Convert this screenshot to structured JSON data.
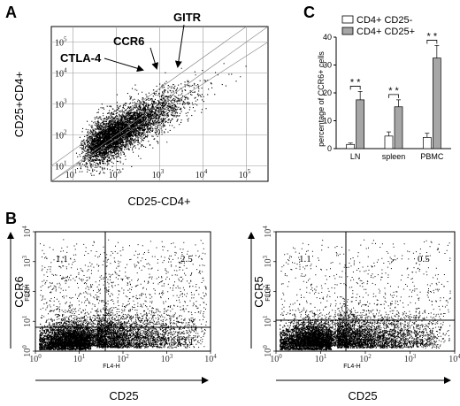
{
  "panel_labels": {
    "a": "A",
    "b": "B",
    "c": "C"
  },
  "colors": {
    "white_bar": "#ffffff",
    "gray_bar": "#a6a6a6",
    "dots": "#000000"
  },
  "chart_data": [
    {
      "type": "scatter",
      "panel": "A",
      "xlabel": "CD25-CD4+",
      "ylabel": "CD25+CD4+",
      "x_ticks": [
        "10",
        "10",
        "10",
        "10",
        "10"
      ],
      "x_tick_exps": [
        "1",
        "2",
        "3",
        "4",
        "5"
      ],
      "y_ticks": [
        "10",
        "10",
        "10",
        "10",
        "10"
      ],
      "y_tick_exps": [
        "1",
        "2",
        "3",
        "4",
        "5"
      ],
      "xlim": [
        0.5,
        5.5
      ],
      "ylim": [
        0.5,
        5.5
      ],
      "scale": "log",
      "grid": true,
      "annotations": [
        {
          "text": "CTLA-4",
          "x": 3.65,
          "y": 4.05
        },
        {
          "text": "CCR6",
          "x": 3.85,
          "y": 4.15
        },
        {
          "text": "GITR",
          "x": 4.2,
          "y": 4.15
        }
      ]
    },
    {
      "type": "bar",
      "panel": "C",
      "ylabel": "percentage of CCR6+ cells",
      "categories": [
        "LN",
        "spleen",
        "PBMC"
      ],
      "ylim": [
        0,
        40
      ],
      "y_ticks": [
        0,
        10,
        20,
        30,
        40
      ],
      "legend_position": "top-left",
      "series": [
        {
          "name": "CD4+ CD25-",
          "values": [
            1.5,
            4.5,
            4.0
          ],
          "errors": [
            0.5,
            1.5,
            1.5
          ]
        },
        {
          "name": "CD4+ CD25+",
          "values": [
            17.5,
            15.0,
            32.5
          ],
          "errors": [
            3.0,
            2.5,
            4.5
          ]
        }
      ],
      "significance": [
        "* *",
        "* *",
        "* *"
      ]
    },
    {
      "type": "scatter",
      "panel": "B-left",
      "ylabel": "CCR6",
      "xlabel": "CD25",
      "instrument_x": "FL4-H",
      "instrument_y": "FL2-H",
      "scale": "log",
      "quadrants": {
        "top_left": "1.1",
        "top_right": "2.5",
        "bottom_right": "13.1"
      },
      "tick_base": "10",
      "tick_exps": [
        "0",
        "1",
        "2",
        "3",
        "4"
      ]
    },
    {
      "type": "scatter",
      "panel": "B-right",
      "ylabel": "CCR5",
      "xlabel": "CD25",
      "instrument_x": "FL4-H",
      "instrument_y": "FL1-H",
      "scale": "log",
      "quadrants": {
        "top_left": "1.1",
        "top_right": "0.5",
        "bottom_right": "14.8"
      },
      "tick_base": "10",
      "tick_exps": [
        "0",
        "1",
        "2",
        "3",
        "4"
      ]
    }
  ]
}
